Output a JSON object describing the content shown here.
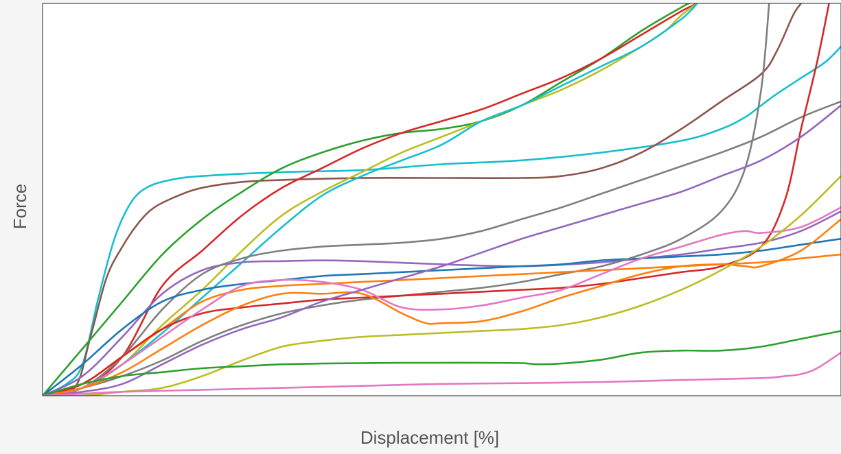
{
  "chart_data": {
    "type": "line",
    "xlabel": "Displacement [%]",
    "ylabel": "Force",
    "xlim": [
      0,
      100
    ],
    "ylim": [
      0,
      100
    ],
    "grid": false,
    "legend": "none",
    "series": [
      {
        "color": "#17becf",
        "x": [
          0,
          3,
          5,
          7,
          9,
          11,
          13,
          16,
          20,
          30,
          40,
          50,
          60,
          70,
          80,
          85,
          88,
          90,
          92,
          95,
          98,
          100
        ],
        "y": [
          0,
          3,
          8,
          25,
          40,
          49,
          53,
          55,
          56,
          57,
          57.5,
          59,
          60,
          62,
          65,
          68,
          71,
          74,
          77,
          81,
          85,
          89
        ]
      },
      {
        "color": "#8c564b",
        "x": [
          0,
          4,
          6,
          8,
          10,
          12,
          14,
          17,
          20,
          25,
          30,
          40,
          50,
          60,
          65,
          70,
          75,
          80,
          85,
          90,
          92,
          94,
          95
        ],
        "y": [
          0,
          2,
          15,
          30,
          38,
          44,
          48,
          51,
          53,
          54.5,
          55,
          55.5,
          55.5,
          55.5,
          56,
          58,
          62,
          68,
          75,
          82,
          88,
          97,
          100
        ]
      },
      {
        "color": "#2ca02c",
        "x": [
          0,
          5,
          10,
          15,
          20,
          25,
          30,
          35,
          40,
          45,
          50,
          55,
          60,
          65,
          70,
          75,
          80,
          81
        ],
        "y": [
          0,
          12,
          24,
          36,
          45,
          52,
          58,
          62,
          65,
          67,
          68,
          70,
          74,
          80,
          86,
          93,
          99,
          100
        ]
      },
      {
        "color": "#d62728",
        "x": [
          0,
          5,
          10,
          15,
          20,
          25,
          30,
          35,
          40,
          45,
          50,
          55,
          60,
          65,
          70,
          75,
          80,
          82
        ],
        "y": [
          0,
          2,
          10,
          28,
          37,
          46,
          53,
          58,
          63,
          67,
          70,
          73,
          77,
          81,
          86,
          92,
          98,
          100
        ]
      },
      {
        "color": "#bcbd22",
        "x": [
          0,
          5,
          10,
          15,
          20,
          25,
          30,
          35,
          40,
          45,
          50,
          55,
          60,
          65,
          70,
          75,
          78,
          80,
          82
        ],
        "y": [
          0,
          2,
          8,
          18,
          27,
          37,
          46,
          52,
          57,
          62,
          66,
          70,
          74,
          78,
          83,
          89,
          93,
          97,
          100
        ]
      },
      {
        "color": "#17becf",
        "x": [
          0,
          5,
          10,
          15,
          20,
          25,
          30,
          35,
          40,
          45,
          50,
          55,
          60,
          65,
          70,
          75,
          80,
          82
        ],
        "y": [
          0,
          2,
          8,
          16,
          25,
          34,
          43,
          51,
          56,
          60,
          64,
          70,
          74,
          79,
          84,
          89,
          96,
          100
        ]
      },
      {
        "color": "#9467bd",
        "x": [
          0,
          5,
          10,
          15,
          20,
          25,
          30,
          35,
          40,
          50,
          60,
          70,
          75,
          80,
          85,
          90,
          95,
          100
        ],
        "y": [
          0,
          5,
          15,
          26,
          32,
          34,
          34.3,
          34.5,
          34.3,
          33.5,
          33,
          34,
          35,
          36,
          37.5,
          39,
          42,
          47
        ]
      },
      {
        "color": "#7f7f7f",
        "x": [
          0,
          5,
          10,
          15,
          20,
          25,
          30,
          35,
          40,
          45,
          50,
          55,
          60,
          65,
          70,
          75,
          80,
          85,
          90,
          95,
          100
        ],
        "y": [
          0,
          2,
          10,
          22,
          31,
          35,
          37,
          38,
          38.5,
          39,
          40,
          42,
          45,
          48,
          51.5,
          55,
          58.5,
          62,
          66,
          71,
          75
        ]
      },
      {
        "color": "#1f77b4",
        "x": [
          0,
          5,
          10,
          15,
          20,
          25,
          30,
          35,
          40,
          45,
          50,
          55,
          60,
          65,
          70,
          75,
          80,
          85,
          90,
          95,
          100
        ],
        "y": [
          0,
          8,
          17,
          24,
          27,
          28.5,
          29.5,
          30.5,
          31,
          31.5,
          32,
          32.5,
          33,
          33.5,
          34.5,
          35,
          35.5,
          36,
          37,
          38.5,
          40
        ]
      },
      {
        "color": "#7f7f7f",
        "x": [
          0,
          5,
          10,
          15,
          20,
          25,
          30,
          35,
          40,
          45,
          50,
          55,
          60,
          65,
          70,
          75,
          80,
          85,
          88,
          90,
          91
        ],
        "y": [
          0,
          2,
          5,
          9,
          14,
          18,
          21,
          23,
          24.5,
          25.5,
          26.5,
          27.5,
          29,
          31,
          33,
          36,
          40,
          47,
          58,
          78,
          100
        ]
      },
      {
        "color": "#ff7f0e",
        "x": [
          0,
          5,
          10,
          15,
          20,
          25,
          30,
          35,
          40,
          45,
          50,
          55,
          60,
          65,
          70,
          75,
          80,
          85,
          90,
          95,
          100
        ],
        "y": [
          0,
          3,
          10,
          17,
          24,
          27,
          28,
          28.5,
          29,
          29.5,
          30,
          30.5,
          31,
          31.5,
          32,
          32.5,
          33,
          33.5,
          34,
          35,
          36
        ]
      },
      {
        "color": "#d62728",
        "x": [
          0,
          5,
          10,
          15,
          20,
          25,
          30,
          35,
          40,
          45,
          50,
          55,
          60,
          65,
          70,
          75,
          80,
          85,
          90,
          93,
          95,
          97,
          98.5
        ],
        "y": [
          0,
          3,
          10,
          17,
          21,
          22.5,
          23.5,
          24.5,
          25,
          25.5,
          26,
          26.5,
          27,
          27.5,
          28.5,
          30,
          31.5,
          33,
          38,
          50,
          68,
          85,
          100
        ]
      },
      {
        "color": "#e377c2",
        "x": [
          0,
          5,
          10,
          15,
          20,
          25,
          30,
          35,
          40,
          45,
          50,
          55,
          60,
          65,
          70,
          75,
          80,
          85,
          88,
          90,
          95,
          100
        ],
        "y": [
          0,
          2,
          8,
          15,
          22,
          28,
          29.5,
          29,
          27,
          22.5,
          22,
          23,
          25,
          27,
          31,
          35,
          38,
          41,
          42,
          41.5,
          43,
          48
        ]
      },
      {
        "color": "#ff7f0e",
        "x": [
          0,
          5,
          10,
          15,
          20,
          25,
          30,
          35,
          40,
          45,
          48,
          50,
          55,
          60,
          65,
          70,
          75,
          80,
          85,
          88,
          90,
          95,
          100
        ],
        "y": [
          0,
          2,
          6,
          12,
          18,
          23,
          26,
          26,
          26,
          21,
          18.5,
          18.5,
          19,
          21.5,
          25,
          28,
          31,
          33,
          33.5,
          33,
          33,
          37,
          45
        ]
      },
      {
        "color": "#9467bd",
        "x": [
          0,
          5,
          10,
          15,
          20,
          25,
          30,
          35,
          40,
          45,
          50,
          55,
          60,
          65,
          70,
          75,
          80,
          85,
          90,
          95,
          100
        ],
        "y": [
          0,
          1,
          3,
          8,
          13,
          17,
          20,
          24,
          27,
          30,
          33,
          36.5,
          40,
          43,
          46,
          49,
          52,
          56,
          60,
          66,
          74
        ]
      },
      {
        "color": "#bcbd22",
        "x": [
          0,
          5,
          10,
          15,
          20,
          25,
          30,
          35,
          40,
          45,
          50,
          55,
          60,
          65,
          70,
          75,
          80,
          85,
          90,
          95,
          100
        ],
        "y": [
          0,
          0,
          1,
          2,
          5,
          9,
          12.5,
          14,
          15,
          15.5,
          16,
          16.5,
          17,
          18,
          20,
          23,
          27,
          32,
          38,
          46,
          56
        ]
      },
      {
        "color": "#2ca02c",
        "x": [
          0,
          5,
          10,
          15,
          20,
          25,
          30,
          35,
          40,
          45,
          50,
          55,
          60,
          62,
          65,
          70,
          75,
          80,
          85,
          90,
          95,
          100
        ],
        "y": [
          0,
          3,
          5,
          6,
          7,
          7.5,
          8,
          8.2,
          8.3,
          8.4,
          8.4,
          8.4,
          8.3,
          8,
          8.2,
          9.2,
          11,
          11.5,
          11.5,
          12.5,
          14.5,
          16.5
        ]
      },
      {
        "color": "#e377c2",
        "x": [
          0,
          5,
          10,
          20,
          30,
          40,
          50,
          60,
          70,
          80,
          90,
          93,
          95,
          97,
          100
        ],
        "y": [
          0,
          0.5,
          1,
          1.5,
          2,
          2.5,
          3,
          3.2,
          3.5,
          4,
          4.5,
          5,
          5.5,
          7,
          11
        ]
      }
    ]
  }
}
